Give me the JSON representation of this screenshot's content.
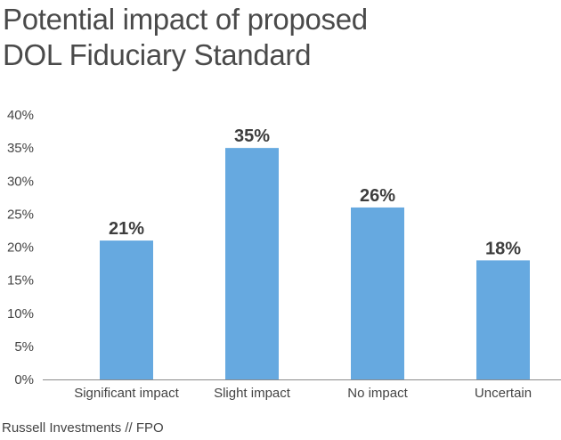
{
  "title_lines": [
    "Potential impact of proposed",
    "DOL Fiduciary Standard"
  ],
  "source": "Russell Investments  //  FPO",
  "chart_data": {
    "type": "bar",
    "title": "Potential impact of proposed DOL Fiduciary Standard",
    "categories": [
      "Significant impact",
      "Slight impact",
      "No impact",
      "Uncertain"
    ],
    "values": [
      21,
      35,
      26,
      18
    ],
    "data_labels": [
      "21%",
      "35%",
      "26%",
      "18%"
    ],
    "xlabel": "",
    "ylabel": "",
    "ylim": [
      0,
      40
    ],
    "yticks": [
      0,
      5,
      10,
      15,
      20,
      25,
      30,
      35,
      40
    ],
    "ytick_labels": [
      "0%",
      "5%",
      "10%",
      "15%",
      "20%",
      "25%",
      "30%",
      "35%",
      "40%"
    ],
    "bar_color": "#66a9e0",
    "grid": false,
    "legend": "none"
  }
}
